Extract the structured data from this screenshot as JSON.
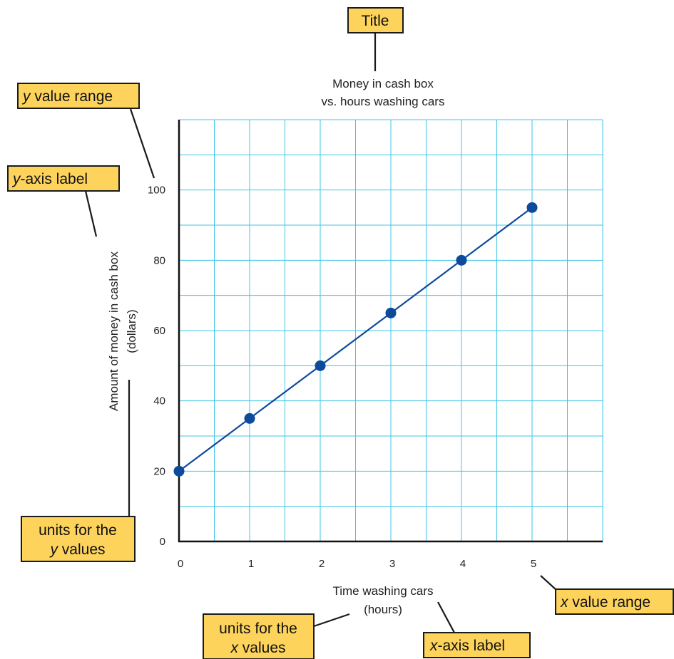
{
  "chart_data": {
    "type": "line",
    "title": [
      "Money in cash box",
      "vs. hours washing cars"
    ],
    "xlabel": [
      "Time washing cars",
      "(hours)"
    ],
    "ylabel": [
      "Amount of money in cash box",
      "(dollars)"
    ],
    "x_ticks": [
      0,
      1,
      2,
      3,
      4,
      5
    ],
    "y_ticks": [
      0,
      20,
      40,
      60,
      80,
      100
    ],
    "xlim": [
      0,
      6
    ],
    "ylim": [
      0,
      120
    ],
    "grid": true,
    "series": [
      {
        "x": [
          0,
          1,
          2,
          3,
          4,
          5
        ],
        "y": [
          20,
          35,
          50,
          65,
          80,
          95
        ]
      }
    ]
  },
  "colors": {
    "line": "#0d4a9c",
    "grid": "#3fc4ea",
    "callout": "#fdd35c"
  },
  "callouts": {
    "title": "Title",
    "y_range": {
      "pre": "",
      "ital": "y",
      "post": " value range"
    },
    "y_axis_label": {
      "pre": "",
      "ital": "y",
      "post": "-axis label"
    },
    "y_units": {
      "line1": "units for the",
      "line2_ital": "y",
      "line2_post": " values"
    },
    "x_units": {
      "line1": "units for the",
      "line2_ital": "x",
      "line2_post": " values"
    },
    "x_axis_label": {
      "pre": "",
      "ital": "x",
      "post": "-axis label"
    },
    "x_range": {
      "pre": "",
      "ital": "x",
      "post": " value range"
    }
  }
}
